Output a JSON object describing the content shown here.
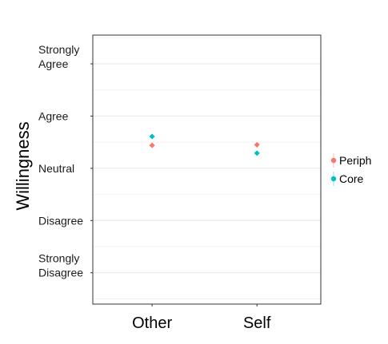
{
  "chart_data": {
    "type": "scatter",
    "title": "",
    "xlabel": "",
    "ylabel": "Willingness",
    "categories": [
      "Other",
      "Self"
    ],
    "y_ticks": [
      {
        "value": -2,
        "label": [
          "Strongly",
          "Disagree"
        ]
      },
      {
        "value": -1,
        "label": [
          "Disagree"
        ]
      },
      {
        "value": 0,
        "label": [
          "Neutral"
        ]
      },
      {
        "value": 1,
        "label": [
          "Agree"
        ]
      },
      {
        "value": 2,
        "label": [
          "Strongly",
          "Agree"
        ]
      }
    ],
    "ylim": [
      -2.6,
      2.55
    ],
    "series": [
      {
        "name": "Periph",
        "color": "#F8766D",
        "values": [
          0.44,
          0.45
        ]
      },
      {
        "name": "Core",
        "color": "#00BFC4",
        "values": [
          0.61,
          0.29
        ]
      }
    ],
    "grid": true,
    "legend_position": "right"
  }
}
